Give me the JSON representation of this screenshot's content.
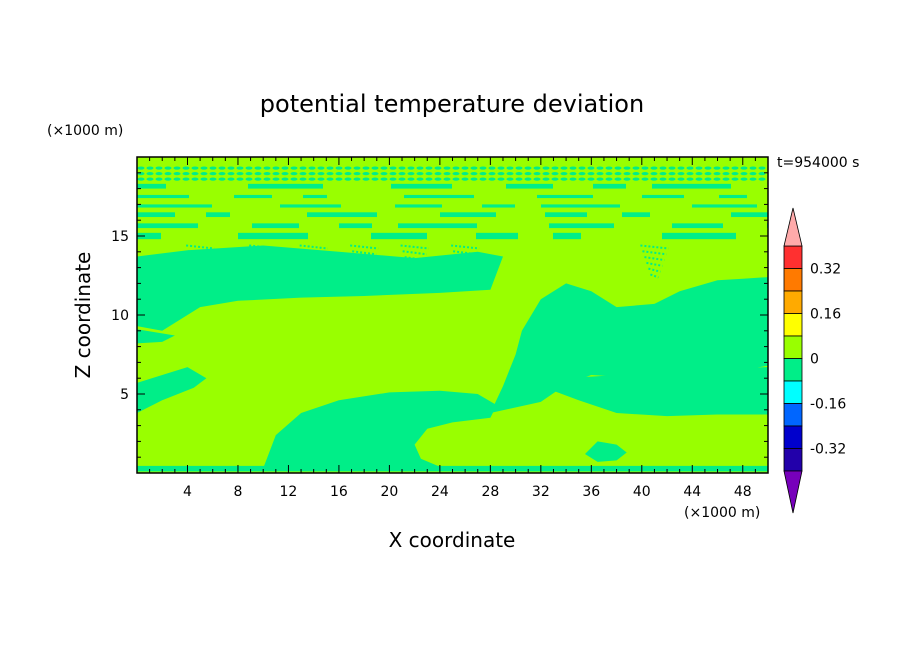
{
  "chart_data": {
    "type": "heatmap",
    "title": "potential temperature deviation",
    "xlabel": "X coordinate",
    "ylabel": "Z coordinate",
    "x_unit": "(×1000 m)",
    "y_unit": "(×1000 m)",
    "time_label": "t=954000 s",
    "xlim": [
      0,
      50
    ],
    "ylim": [
      0,
      20
    ],
    "xticks": [
      4,
      8,
      12,
      16,
      20,
      24,
      28,
      32,
      36,
      40,
      44,
      48
    ],
    "yticks": [
      5,
      10,
      15
    ],
    "colorbar": {
      "levels": [
        {
          "low": 0.32,
          "high": 0.4,
          "color": "#ff3030"
        },
        {
          "low": 0.24,
          "high": 0.32,
          "color": "#ff7a00"
        },
        {
          "low": 0.16,
          "high": 0.24,
          "color": "#ffaa00"
        },
        {
          "low": 0.08,
          "high": 0.16,
          "color": "#ffff00"
        },
        {
          "low": 0.0,
          "high": 0.08,
          "color": "#99ff00"
        },
        {
          "low": -0.08,
          "high": 0.0,
          "color": "#00ee88"
        },
        {
          "low": -0.16,
          "high": -0.08,
          "color": "#00ffff"
        },
        {
          "low": -0.24,
          "high": -0.16,
          "color": "#0066ff"
        },
        {
          "low": -0.32,
          "high": -0.24,
          "color": "#0000cc"
        },
        {
          "low": -0.4,
          "high": -0.32,
          "color": "#2200aa"
        }
      ],
      "over_color": "#ffaaaa",
      "under_color": "#7700bb",
      "labels": [
        "0.32",
        "0.16",
        "0",
        "-0.16",
        "-0.32"
      ],
      "label_values": [
        0.32,
        0.16,
        0,
        -0.16,
        -0.32
      ]
    },
    "field": {
      "positive_color": "#99ff00",
      "negative_color": "#00ee88",
      "negative_regions": [
        {
          "name": "lower-left",
          "points": [
            [
              0,
              5.7
            ],
            [
              2,
              6.2
            ],
            [
              4,
              6.7
            ],
            [
              5.5,
              6.0
            ],
            [
              4.5,
              5.4
            ],
            [
              2,
              4.6
            ],
            [
              0,
              3.8
            ]
          ]
        },
        {
          "name": "lower-center",
          "points": [
            [
              10,
              0.3
            ],
            [
              11,
              2.4
            ],
            [
              13,
              3.8
            ],
            [
              16,
              4.6
            ],
            [
              20,
              5.1
            ],
            [
              24,
              5.2
            ],
            [
              27,
              5.0
            ],
            [
              28.5,
              4.3
            ],
            [
              28,
              3.5
            ],
            [
              25,
              3.2
            ],
            [
              23,
              2.8
            ],
            [
              22,
              1.8
            ],
            [
              22.5,
              0.9
            ],
            [
              24,
              0.4
            ]
          ]
        },
        {
          "name": "mid-right",
          "points": [
            [
              28,
              3.8
            ],
            [
              29,
              5.5
            ],
            [
              30,
              7.5
            ],
            [
              30.5,
              9.0
            ],
            [
              32,
              11.0
            ],
            [
              34,
              12.0
            ],
            [
              36,
              11.5
            ],
            [
              38,
              10.5
            ],
            [
              41,
              10.7
            ],
            [
              43,
              11.5
            ],
            [
              46,
              12.2
            ],
            [
              48,
              12.3
            ],
            [
              50,
              12.4
            ],
            [
              50,
              6.8
            ],
            [
              48,
              6.5
            ],
            [
              44,
              6.2
            ],
            [
              40,
              6.0
            ],
            [
              36,
              6.2
            ],
            [
              34,
              5.6
            ],
            [
              32,
              4.5
            ]
          ]
        },
        {
          "name": "right-base",
          "points": [
            [
              32,
              5.5
            ],
            [
              35,
              4.6
            ],
            [
              38,
              3.8
            ],
            [
              42,
              3.6
            ],
            [
              46,
              3.7
            ],
            [
              50,
              3.7
            ],
            [
              50,
              6.7
            ],
            [
              45,
              6.6
            ],
            [
              40,
              6.3
            ],
            [
              36,
              6.1
            ],
            [
              33,
              6.0
            ]
          ]
        },
        {
          "name": "bottom-right-blob",
          "points": [
            [
              35.5,
              1.2
            ],
            [
              36.5,
              2.0
            ],
            [
              38,
              1.8
            ],
            [
              38.8,
              1.3
            ],
            [
              38,
              0.8
            ],
            [
              36.5,
              0.7
            ]
          ]
        },
        {
          "name": "upper-band",
          "points": [
            [
              0,
              9.3
            ],
            [
              2,
              9.0
            ],
            [
              5,
              10.5
            ],
            [
              8,
              10.9
            ],
            [
              13,
              11.1
            ],
            [
              18,
              11.2
            ],
            [
              24,
              11.4
            ],
            [
              28,
              11.6
            ],
            [
              29,
              13.7
            ],
            [
              27,
              14.0
            ],
            [
              22,
              13.6
            ],
            [
              16,
              14.0
            ],
            [
              10,
              14.4
            ],
            [
              4,
              14.1
            ],
            [
              0,
              13.7
            ]
          ]
        },
        {
          "name": "upper-left-patch",
          "points": [
            [
              0,
              8.2
            ],
            [
              2,
              8.3
            ],
            [
              3,
              8.7
            ],
            [
              0,
              9.1
            ]
          ]
        }
      ],
      "stripe_bands_z": [
        {
          "z0": 14.8,
          "z1": 15.2
        },
        {
          "z0": 15.5,
          "z1": 15.8
        },
        {
          "z0": 16.2,
          "z1": 16.5
        },
        {
          "z0": 16.8,
          "z1": 17.0
        },
        {
          "z0": 17.4,
          "z1": 17.6
        },
        {
          "z0": 18.0,
          "z1": 18.3
        }
      ],
      "wave_cones_x": [
        5,
        10,
        14,
        18,
        22,
        26,
        41
      ]
    }
  }
}
